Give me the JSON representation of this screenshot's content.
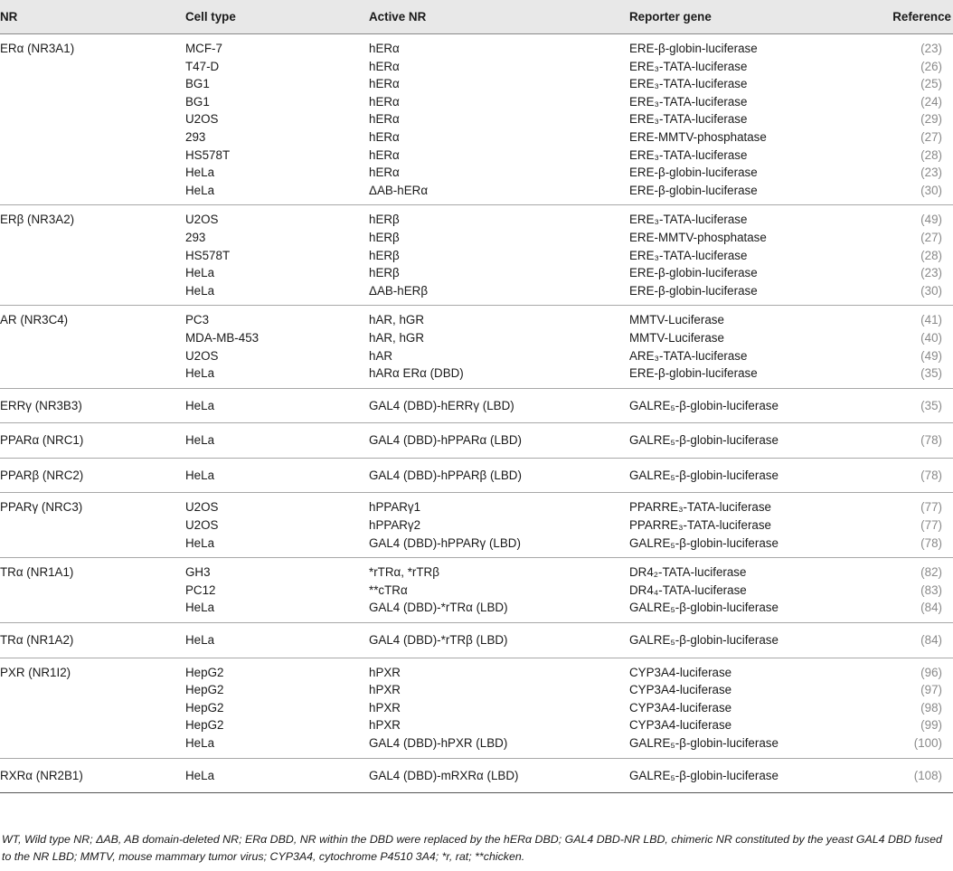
{
  "headers": {
    "nr": "NR",
    "cell_type": "Cell type",
    "active_nr": "Active NR",
    "reporter_gene": "Reporter gene",
    "reference": "Reference"
  },
  "groups": [
    {
      "nr": "ERα (NR3A1)",
      "rows": [
        {
          "cell": "MCF-7",
          "active": "hERα",
          "reporter": "ERE-β-globin-luciferase",
          "ref": "(23)"
        },
        {
          "cell": "T47-D",
          "active": "hERα",
          "reporter": "ERE₃-TATA-luciferase",
          "ref": "(26)"
        },
        {
          "cell": "BG1",
          "active": "hERα",
          "reporter": "ERE₃-TATA-luciferase",
          "ref": "(25)"
        },
        {
          "cell": "BG1",
          "active": "hERα",
          "reporter": "ERE₃-TATA-luciferase",
          "ref": "(24)"
        },
        {
          "cell": "U2OS",
          "active": "hERα",
          "reporter": "ERE₃-TATA-luciferase",
          "ref": "(29)"
        },
        {
          "cell": "293",
          "active": "hERα",
          "reporter": "ERE-MMTV-phosphatase",
          "ref": "(27)"
        },
        {
          "cell": "HS578T",
          "active": "hERα",
          "reporter": "ERE₃-TATA-luciferase",
          "ref": "(28)"
        },
        {
          "cell": "HeLa",
          "active": "hERα",
          "reporter": "ERE-β-globin-luciferase",
          "ref": "(23)"
        },
        {
          "cell": "HeLa",
          "active": "ΔAB-hERα",
          "reporter": "ERE-β-globin-luciferase",
          "ref": "(30)"
        }
      ]
    },
    {
      "nr": "ERβ (NR3A2)",
      "rows": [
        {
          "cell": "U2OS",
          "active": "hERβ",
          "reporter": "ERE₃-TATA-luciferase",
          "ref": "(49)"
        },
        {
          "cell": "293",
          "active": "hERβ",
          "reporter": "ERE-MMTV-phosphatase",
          "ref": "(27)"
        },
        {
          "cell": "HS578T",
          "active": "hERβ",
          "reporter": "ERE₃-TATA-luciferase",
          "ref": "(28)"
        },
        {
          "cell": "HeLa",
          "active": "hERβ",
          "reporter": "ERE-β-globin-luciferase",
          "ref": "(23)"
        },
        {
          "cell": "HeLa",
          "active": "ΔAB-hERβ",
          "reporter": "ERE-β-globin-luciferase",
          "ref": "(30)"
        }
      ]
    },
    {
      "nr": "AR (NR3C4)",
      "rows": [
        {
          "cell": "PC3",
          "active": "hAR, hGR",
          "reporter": "MMTV-Luciferase",
          "ref": "(41)"
        },
        {
          "cell": "MDA-MB-453",
          "active": "hAR, hGR",
          "reporter": "MMTV-Luciferase",
          "ref": "(40)"
        },
        {
          "cell": "U2OS",
          "active": "hAR",
          "reporter": "ARE₃-TATA-luciferase",
          "ref": "(49)"
        },
        {
          "cell": "HeLa",
          "active": "hARα ERα (DBD)",
          "reporter": "ERE-β-globin-luciferase",
          "ref": "(35)"
        }
      ]
    },
    {
      "nr": "ERRγ (NR3B3)",
      "rows": [
        {
          "cell": "HeLa",
          "active": "GAL4 (DBD)-hERRγ (LBD)",
          "reporter": "GALRE₅-β-globin-luciferase",
          "ref": "(35)"
        }
      ]
    },
    {
      "nr": "PPARα (NRC1)",
      "rows": [
        {
          "cell": "HeLa",
          "active": "GAL4 (DBD)-hPPARα (LBD)",
          "reporter": "GALRE₅-β-globin-luciferase",
          "ref": "(78)"
        }
      ]
    },
    {
      "nr": "PPARβ (NRC2)",
      "rows": [
        {
          "cell": "HeLa",
          "active": "GAL4 (DBD)-hPPARβ (LBD)",
          "reporter": "GALRE₅-β-globin-luciferase",
          "ref": "(78)"
        }
      ]
    },
    {
      "nr": "PPARγ (NRC3)",
      "rows": [
        {
          "cell": "U2OS",
          "active": "hPPARγ1",
          "reporter": "PPARRE₃-TATA-luciferase",
          "ref": "(77)"
        },
        {
          "cell": "U2OS",
          "active": "hPPARγ2",
          "reporter": "PPARRE₃-TATA-luciferase",
          "ref": "(77)"
        },
        {
          "cell": "HeLa",
          "active": "GAL4 (DBD)-hPPARγ (LBD)",
          "reporter": "GALRE₅-β-globin-luciferase",
          "ref": "(78)"
        }
      ]
    },
    {
      "nr": "TRα (NR1A1)",
      "rows": [
        {
          "cell": "GH3",
          "active": "*rTRα, *rTRβ",
          "reporter": "DR4₂-TATA-luciferase",
          "ref": "(82)"
        },
        {
          "cell": "PC12",
          "active": "**cTRα",
          "reporter": "DR4₄-TATA-luciferase",
          "ref": "(83)"
        },
        {
          "cell": "HeLa",
          "active": "GAL4 (DBD)-*rTRα (LBD)",
          "reporter": "GALRE₅-β-globin-luciferase",
          "ref": "(84)"
        }
      ]
    },
    {
      "nr": "TRα (NR1A2)",
      "rows": [
        {
          "cell": "HeLa",
          "active": "GAL4 (DBD)-*rTRβ (LBD)",
          "reporter": "GALRE₅-β-globin-luciferase",
          "ref": "(84)"
        }
      ]
    },
    {
      "nr": "PXR (NR1I2)",
      "rows": [
        {
          "cell": "HepG2",
          "active": "hPXR",
          "reporter": "CYP3A4-luciferase",
          "ref": "(96)"
        },
        {
          "cell": "HepG2",
          "active": "hPXR",
          "reporter": "CYP3A4-luciferase",
          "ref": "(97)"
        },
        {
          "cell": "HepG2",
          "active": "hPXR",
          "reporter": "CYP3A4-luciferase",
          "ref": "(98)"
        },
        {
          "cell": "HepG2",
          "active": "hPXR",
          "reporter": "CYP3A4-luciferase",
          "ref": "(99)"
        },
        {
          "cell": "HeLa",
          "active": "GAL4 (DBD)-hPXR (LBD)",
          "reporter": "GALRE₅-β-globin-luciferase",
          "ref": "(100)"
        }
      ]
    },
    {
      "nr": "RXRα (NR2B1)",
      "rows": [
        {
          "cell": "HeLa",
          "active": "GAL4 (DBD)-mRXRα (LBD)",
          "reporter": "GALRE₅-β-globin-luciferase",
          "ref": "(108)"
        }
      ]
    }
  ],
  "footnote": "WT, Wild type NR; ΔAB, AB domain-deleted NR; ERα DBD, NR within the DBD were replaced by the hERα DBD; GAL4 DBD-NR LBD, chimeric NR constituted by the yeast GAL4 DBD fused to the NR LBD; MMTV, mouse mammary tumor virus; CYP3A4, cytochrome P4510 3A4; *r, rat; **chicken."
}
